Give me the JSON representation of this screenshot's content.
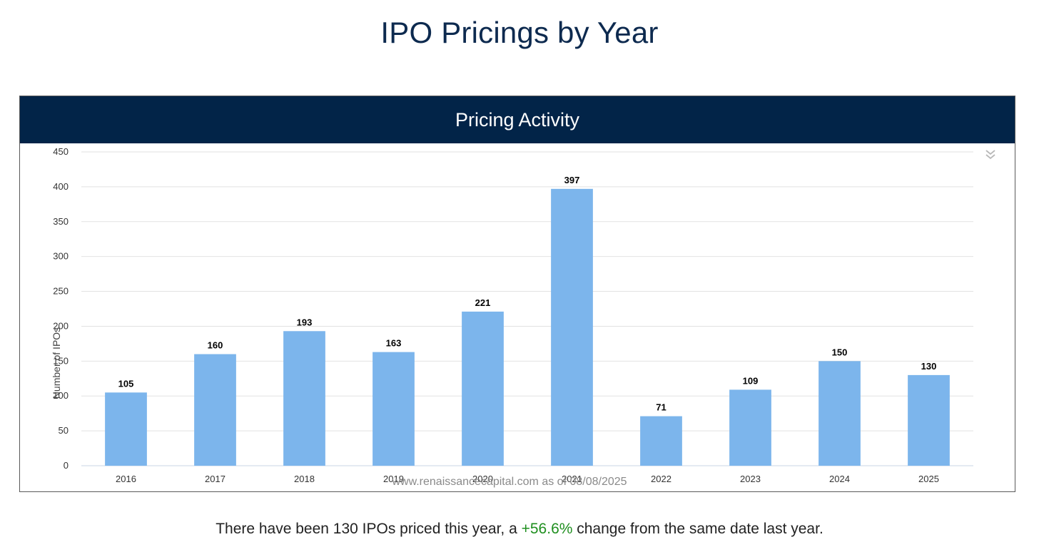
{
  "page_title": "IPO Pricings by Year",
  "panel_title": "Pricing Activity",
  "credit": "www.renaissancecapital.com as of 08/08/2025",
  "menu_icon": "double-chevron-down-icon",
  "summary": {
    "prefix": "There have been 130 IPOs priced this year, a ",
    "change": "+56.6%",
    "suffix": " change from the same date last year."
  },
  "colors": {
    "header_bg": "#022448",
    "title": "#0d2a4f",
    "bar": "#7cb5ec",
    "positive": "#1f8f1f"
  },
  "chart_data": {
    "type": "bar",
    "title": "Pricing Activity",
    "categories": [
      "2016",
      "2017",
      "2018",
      "2019",
      "2020",
      "2021",
      "2022",
      "2023",
      "2024",
      "2025"
    ],
    "values": [
      105,
      160,
      193,
      163,
      221,
      397,
      71,
      109,
      150,
      130
    ],
    "xlabel": "",
    "ylabel": "Number of IPOs",
    "ylim": [
      0,
      450
    ],
    "yticks": [
      0,
      50,
      100,
      150,
      200,
      250,
      300,
      350,
      400,
      450
    ],
    "grid": true,
    "legend": "none",
    "data_labels": true
  }
}
